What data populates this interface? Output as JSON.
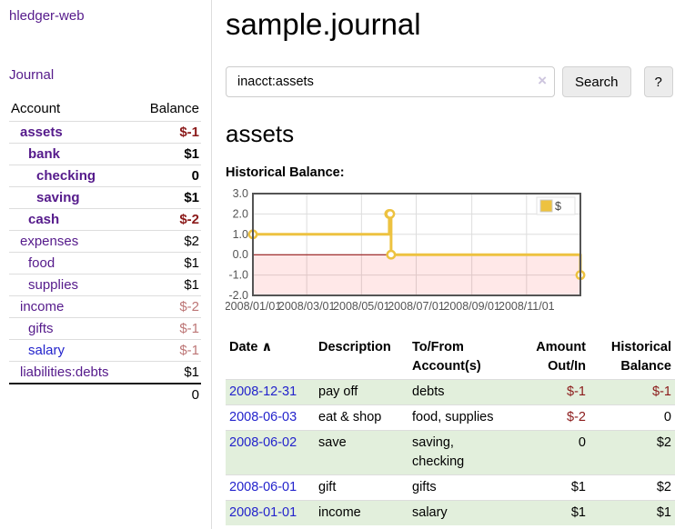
{
  "app": {
    "title": "hledger-web"
  },
  "sidebar": {
    "nav_journal": "Journal",
    "accounts": {
      "headers": [
        "Account",
        "Balance"
      ],
      "rows": [
        {
          "name": "assets",
          "depth": 1,
          "balance": "$-1",
          "emph": true,
          "link": "purple",
          "neg": "neg-strong"
        },
        {
          "name": "bank",
          "depth": 2,
          "balance": "$1",
          "emph": true,
          "link": "purple",
          "neg": ""
        },
        {
          "name": "checking",
          "depth": 3,
          "balance": "0",
          "emph": true,
          "link": "purple",
          "neg": ""
        },
        {
          "name": "saving",
          "depth": 3,
          "balance": "$1",
          "emph": true,
          "link": "purple",
          "neg": ""
        },
        {
          "name": "cash",
          "depth": 2,
          "balance": "$-2",
          "emph": true,
          "link": "purple",
          "neg": "neg-strong"
        },
        {
          "name": "expenses",
          "depth": 1,
          "balance": "$2",
          "emph": false,
          "link": "purple",
          "neg": ""
        },
        {
          "name": "food",
          "depth": 2,
          "balance": "$1",
          "emph": false,
          "link": "purple",
          "neg": ""
        },
        {
          "name": "supplies",
          "depth": 2,
          "balance": "$1",
          "emph": false,
          "link": "purple",
          "neg": ""
        },
        {
          "name": "income",
          "depth": 1,
          "balance": "$-2",
          "emph": false,
          "link": "purple",
          "neg": "neg-soft"
        },
        {
          "name": "gifts",
          "depth": 2,
          "balance": "$-1",
          "emph": false,
          "link": "purple",
          "neg": "neg-soft"
        },
        {
          "name": "salary",
          "depth": 2,
          "balance": "$-1",
          "emph": false,
          "link": "blue",
          "neg": "neg-soft"
        },
        {
          "name": "liabilities:debts",
          "depth": 1,
          "balance": "$1",
          "emph": false,
          "link": "purple",
          "neg": ""
        }
      ],
      "total": "0"
    }
  },
  "main": {
    "title": "sample.journal",
    "search": {
      "value": "inacct:assets",
      "clear_icon": "×",
      "search_button": "Search",
      "help_button": "?"
    },
    "section_title": "assets",
    "chart_label": "Historical Balance:"
  },
  "register": {
    "headers": {
      "date": "Date",
      "sort_icon": "∧",
      "description": "Description",
      "accounts": "To/From\nAccount(s)",
      "amount": "Amount\nOut/In",
      "balance": "Historical\nBalance"
    },
    "rows": [
      {
        "date": "2008-12-31",
        "description": "pay off",
        "accounts": "debts",
        "amount": "$-1",
        "balance": "$-1",
        "amount_neg": true,
        "balance_neg": true
      },
      {
        "date": "2008-06-03",
        "description": "eat & shop",
        "accounts": "food, supplies",
        "amount": "$-2",
        "balance": "0",
        "amount_neg": true,
        "balance_neg": false
      },
      {
        "date": "2008-06-02",
        "description": "save",
        "accounts": "saving, checking",
        "amount": "0",
        "balance": "$2",
        "amount_neg": false,
        "balance_neg": false
      },
      {
        "date": "2008-06-01",
        "description": "gift",
        "accounts": "gifts",
        "amount": "$1",
        "balance": "$2",
        "amount_neg": false,
        "balance_neg": false
      },
      {
        "date": "2008-01-01",
        "description": "income",
        "accounts": "salary",
        "amount": "$1",
        "balance": "$1",
        "amount_neg": false,
        "balance_neg": false
      }
    ]
  },
  "chart_data": {
    "type": "line",
    "style": "step",
    "title": "Historical Balance:",
    "series": [
      {
        "name": "$",
        "color": "#edc240",
        "points": [
          [
            "2008-01-01",
            1
          ],
          [
            "2008-06-01",
            2
          ],
          [
            "2008-06-02",
            2
          ],
          [
            "2008-06-03",
            0
          ],
          [
            "2008-12-31",
            -1
          ]
        ]
      }
    ],
    "x_ticks": [
      "2008/01/01",
      "2008/03/01",
      "2008/05/01",
      "2008/07/01",
      "2008/09/01",
      "2008/11/01"
    ],
    "y_ticks": [
      "3.0",
      "2.0",
      "1.0",
      "0.0",
      "-1.0",
      "-2.0"
    ],
    "xlim": [
      "2008-01-01",
      "2008-12-31"
    ],
    "ylim": [
      -2,
      3
    ],
    "grid": true,
    "legend_position": "top-right",
    "zero_line_color": "#8b0000",
    "negative_region_fill": "#ff0000",
    "negative_region_opacity": 0.09,
    "grid_color": "#dddddd",
    "border_color": "#545454",
    "tick_color": "#545454"
  }
}
